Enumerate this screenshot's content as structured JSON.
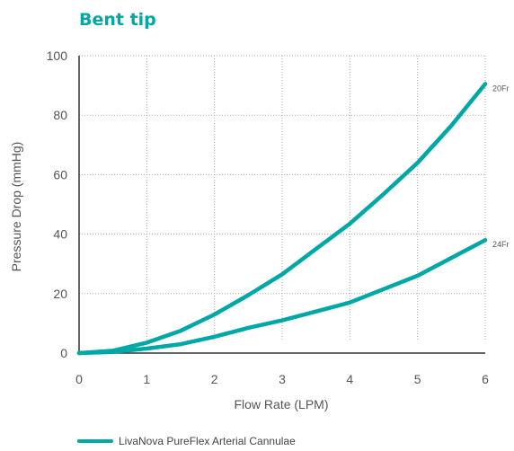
{
  "colors": {
    "accent": "#00a7a7",
    "grid": "#aaaaaa",
    "axis": "#333333",
    "text": "#555555"
  },
  "chart_data": {
    "type": "line",
    "title": "Bent tip",
    "xlabel": "Flow Rate (LPM)",
    "ylabel": "Pressure Drop (mmHg)",
    "xlim": [
      0,
      6
    ],
    "ylim": [
      0,
      100
    ],
    "xticks": [
      0,
      1,
      2,
      3,
      4,
      5,
      6
    ],
    "yticks": [
      0,
      20,
      40,
      60,
      80,
      100
    ],
    "grid": "dotted",
    "series": [
      {
        "name": "20Fr",
        "x": [
          0,
          0.5,
          1,
          1.5,
          2,
          2.5,
          3,
          3.5,
          4,
          4.5,
          5,
          5.5,
          6
        ],
        "y": [
          0,
          0.8,
          3.5,
          7.5,
          13,
          19.5,
          26.5,
          35,
          43.5,
          53.5,
          64,
          76.5,
          90.5
        ]
      },
      {
        "name": "24Fr",
        "x": [
          0,
          0.5,
          1,
          1.5,
          2,
          2.5,
          3,
          3.5,
          4,
          4.5,
          5,
          5.5,
          6
        ],
        "y": [
          0,
          0.4,
          1.5,
          3,
          5.5,
          8.5,
          11,
          14,
          17,
          21.5,
          26,
          32,
          38
        ]
      }
    ],
    "legend": {
      "label": "LivaNova PureFlex Arterial Cannulae",
      "placement": "bottom-left"
    }
  }
}
